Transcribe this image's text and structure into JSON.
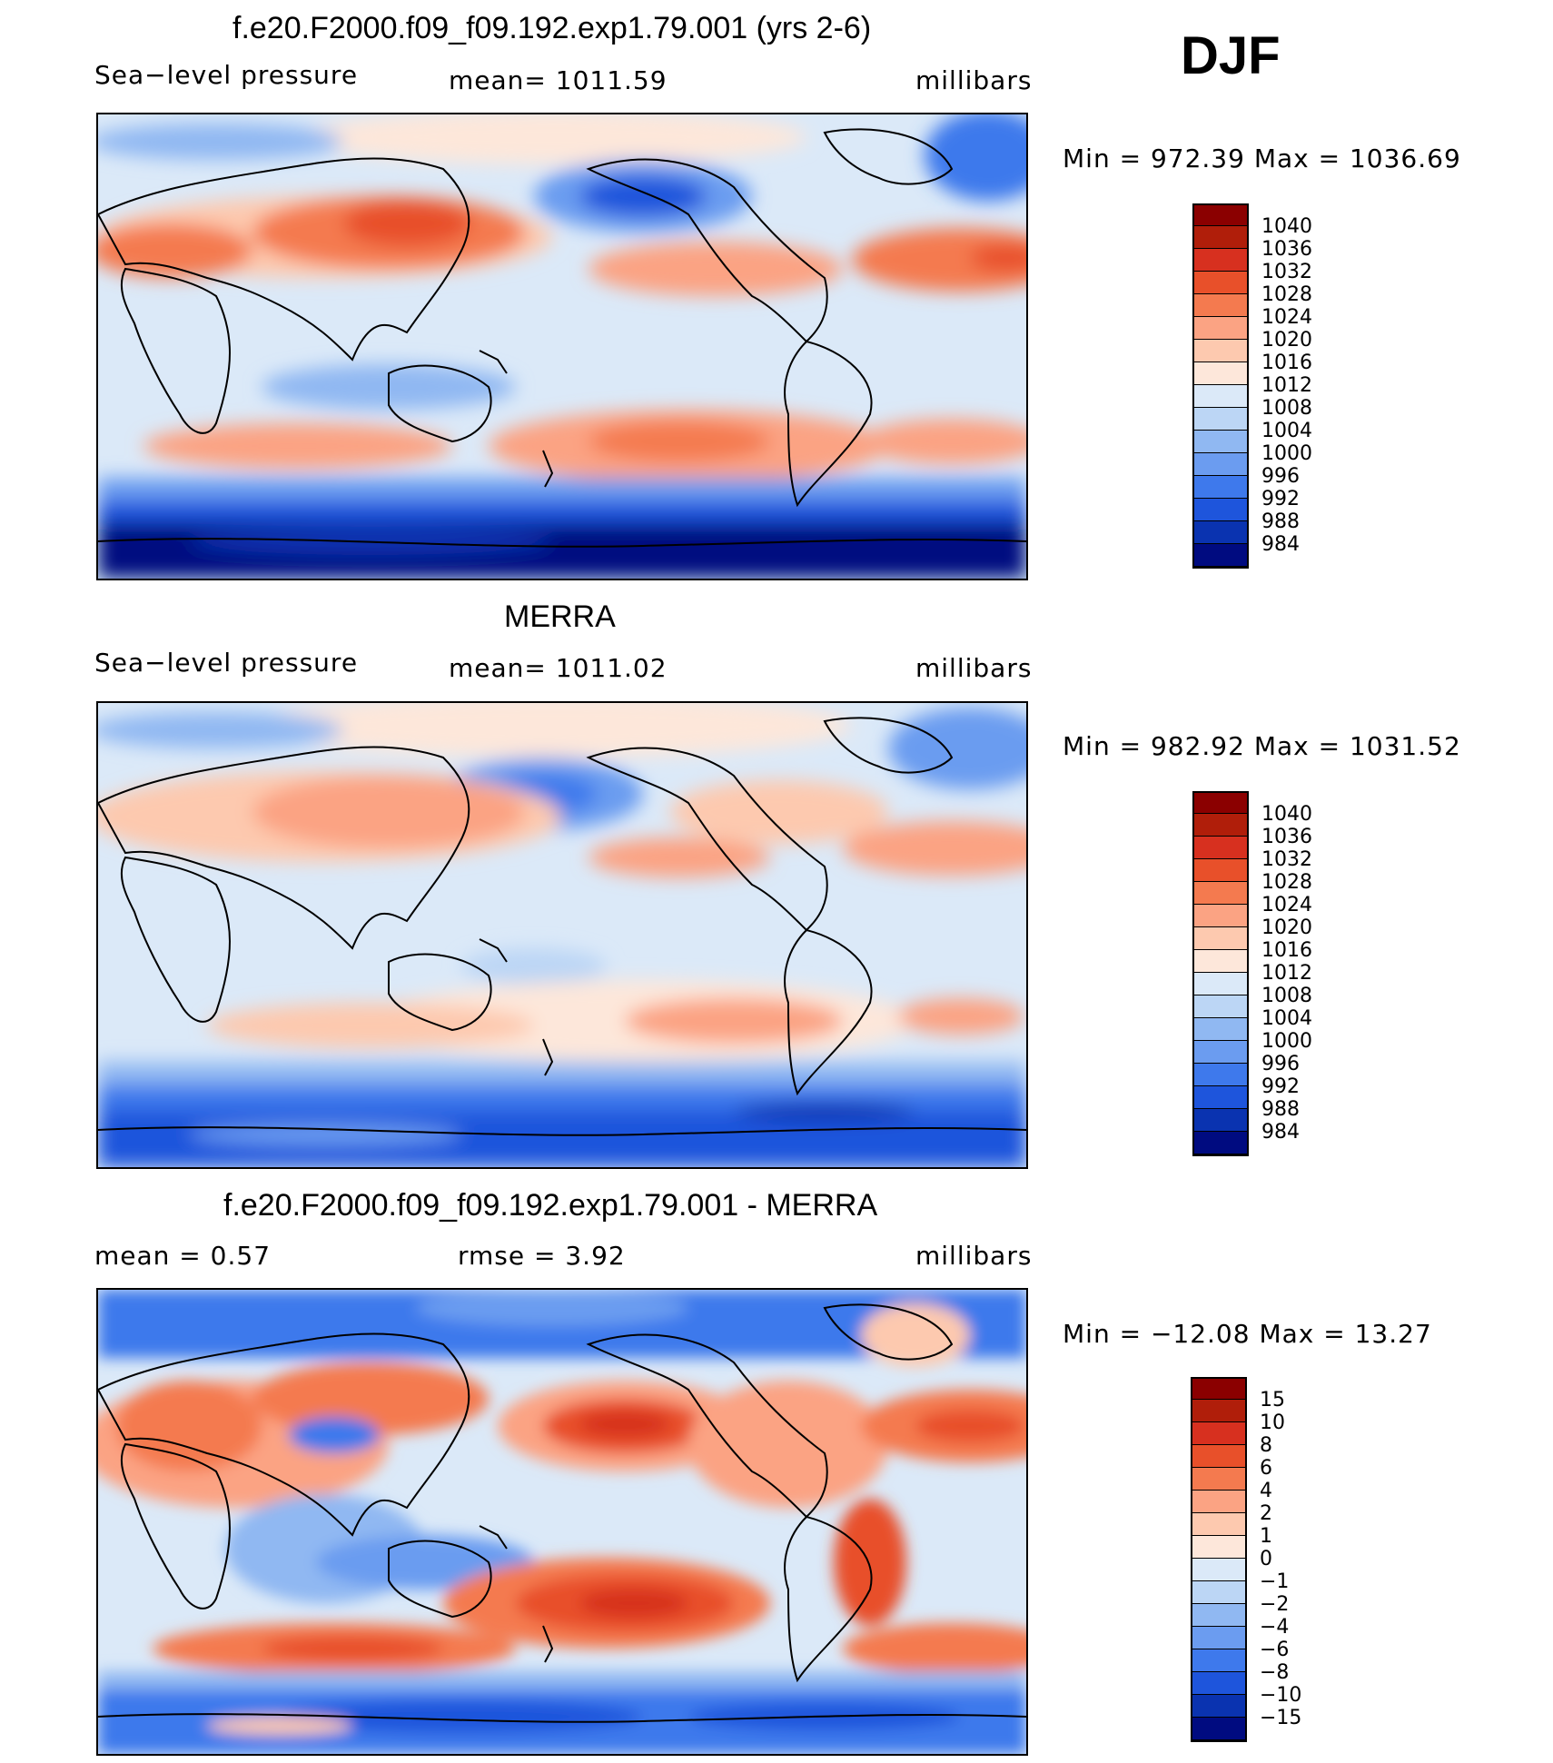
{
  "season": "DJF",
  "panels": [
    {
      "id": "model",
      "title": "f.e20.F2000.f09_f09.192.exp1.79.001 (yrs 2-6)",
      "left_label": "Sea−level pressure",
      "mid_label": "mean=  1011.59",
      "units": "millibars",
      "minmax": "Min  =  972.39  Max  =  1036.69",
      "colorbar": {
        "colors": [
          "#8b0000",
          "#b01e0a",
          "#d7301f",
          "#e8502a",
          "#f47a4f",
          "#fba383",
          "#fdc9af",
          "#fde7da",
          "#dbe9f8",
          "#bcd6f5",
          "#90b8f2",
          "#6b9cf0",
          "#3e79ec",
          "#1e55dc",
          "#0a33b0",
          "#000b80"
        ],
        "labels": [
          "1040",
          "1036",
          "1032",
          "1028",
          "1024",
          "1020",
          "1016",
          "1012",
          "1008",
          "1004",
          "1000",
          "996",
          "992",
          "988",
          "984"
        ]
      }
    },
    {
      "id": "obs",
      "title": "MERRA",
      "left_label": "Sea−level pressure",
      "mid_label": "mean=  1011.02",
      "units": "millibars",
      "minmax": "Min  =  982.92  Max  =  1031.52",
      "colorbar": {
        "colors": [
          "#8b0000",
          "#b01e0a",
          "#d7301f",
          "#e8502a",
          "#f47a4f",
          "#fba383",
          "#fdc9af",
          "#fde7da",
          "#dbe9f8",
          "#bcd6f5",
          "#90b8f2",
          "#6b9cf0",
          "#3e79ec",
          "#1e55dc",
          "#0a33b0",
          "#000b80"
        ],
        "labels": [
          "1040",
          "1036",
          "1032",
          "1028",
          "1024",
          "1020",
          "1016",
          "1012",
          "1008",
          "1004",
          "1000",
          "996",
          "992",
          "988",
          "984"
        ]
      }
    },
    {
      "id": "diff",
      "title": "f.e20.F2000.f09_f09.192.exp1.79.001 - MERRA",
      "left_label": "mean  =      0.57",
      "mid_label": "rmse  =      3.92",
      "units": "millibars",
      "minmax": "Min  =  −12.08  Max  =     13.27",
      "colorbar": {
        "colors": [
          "#8b0000",
          "#b01e0a",
          "#d7301f",
          "#e8502a",
          "#f47a4f",
          "#fba383",
          "#fdc9af",
          "#fde7da",
          "#dbe9f8",
          "#bcd6f5",
          "#90b8f2",
          "#6b9cf0",
          "#3e79ec",
          "#1e55dc",
          "#0a33b0",
          "#000b80"
        ],
        "labels": [
          "15",
          "10",
          "8",
          "6",
          "4",
          "2",
          "1",
          "0",
          "−1",
          "−2",
          "−4",
          "−6",
          "−8",
          "−10",
          "−15"
        ]
      }
    }
  ]
}
